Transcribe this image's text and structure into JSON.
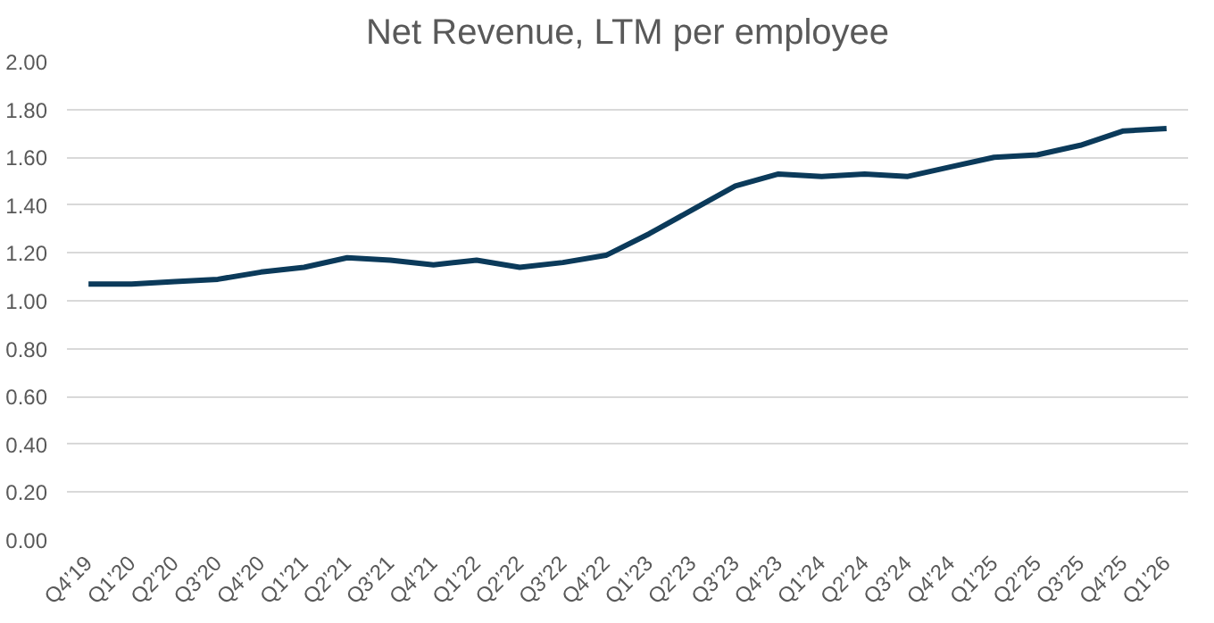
{
  "chart_data": {
    "type": "line",
    "title": "Net Revenue, LTM per employee",
    "categories": [
      "Q4’19",
      "Q1’20",
      "Q2’20",
      "Q3’20",
      "Q4’20",
      "Q1’21",
      "Q2’21",
      "Q3’21",
      "Q4’21",
      "Q1’22",
      "Q2’22",
      "Q3’22",
      "Q4’22",
      "Q1’23",
      "Q2’23",
      "Q3’23",
      "Q4’23",
      "Q1’24",
      "Q2’24",
      "Q3’24",
      "Q4’24",
      "Q1’25",
      "Q2’25",
      "Q3’25",
      "Q4’25",
      "Q1’26"
    ],
    "series": [
      {
        "color": "#0b3a5a",
        "values": [
          1.07,
          1.07,
          1.08,
          1.09,
          1.12,
          1.14,
          1.18,
          1.17,
          1.15,
          1.17,
          1.14,
          1.16,
          1.19,
          1.28,
          1.38,
          1.48,
          1.53,
          1.52,
          1.53,
          1.52,
          1.56,
          1.6,
          1.61,
          1.65,
          1.71,
          1.72
        ]
      }
    ],
    "ylim": [
      0,
      2.0
    ],
    "yticks": [
      {
        "value": 0,
        "label": "0.00"
      },
      {
        "value": 0.2,
        "label": "0.20"
      },
      {
        "value": 0.4,
        "label": "0.40"
      },
      {
        "value": 0.6,
        "label": "0.60"
      },
      {
        "value": 0.8,
        "label": "0.80"
      },
      {
        "value": 1.0,
        "label": "1.00"
      },
      {
        "value": 1.2,
        "label": "1.20"
      },
      {
        "value": 1.4,
        "label": "1.40"
      },
      {
        "value": 1.6,
        "label": "1.60"
      },
      {
        "value": 1.8,
        "label": "1.80"
      },
      {
        "value": 2.0,
        "label": "2.00"
      }
    ],
    "grid": "y",
    "line_style": "solid"
  }
}
